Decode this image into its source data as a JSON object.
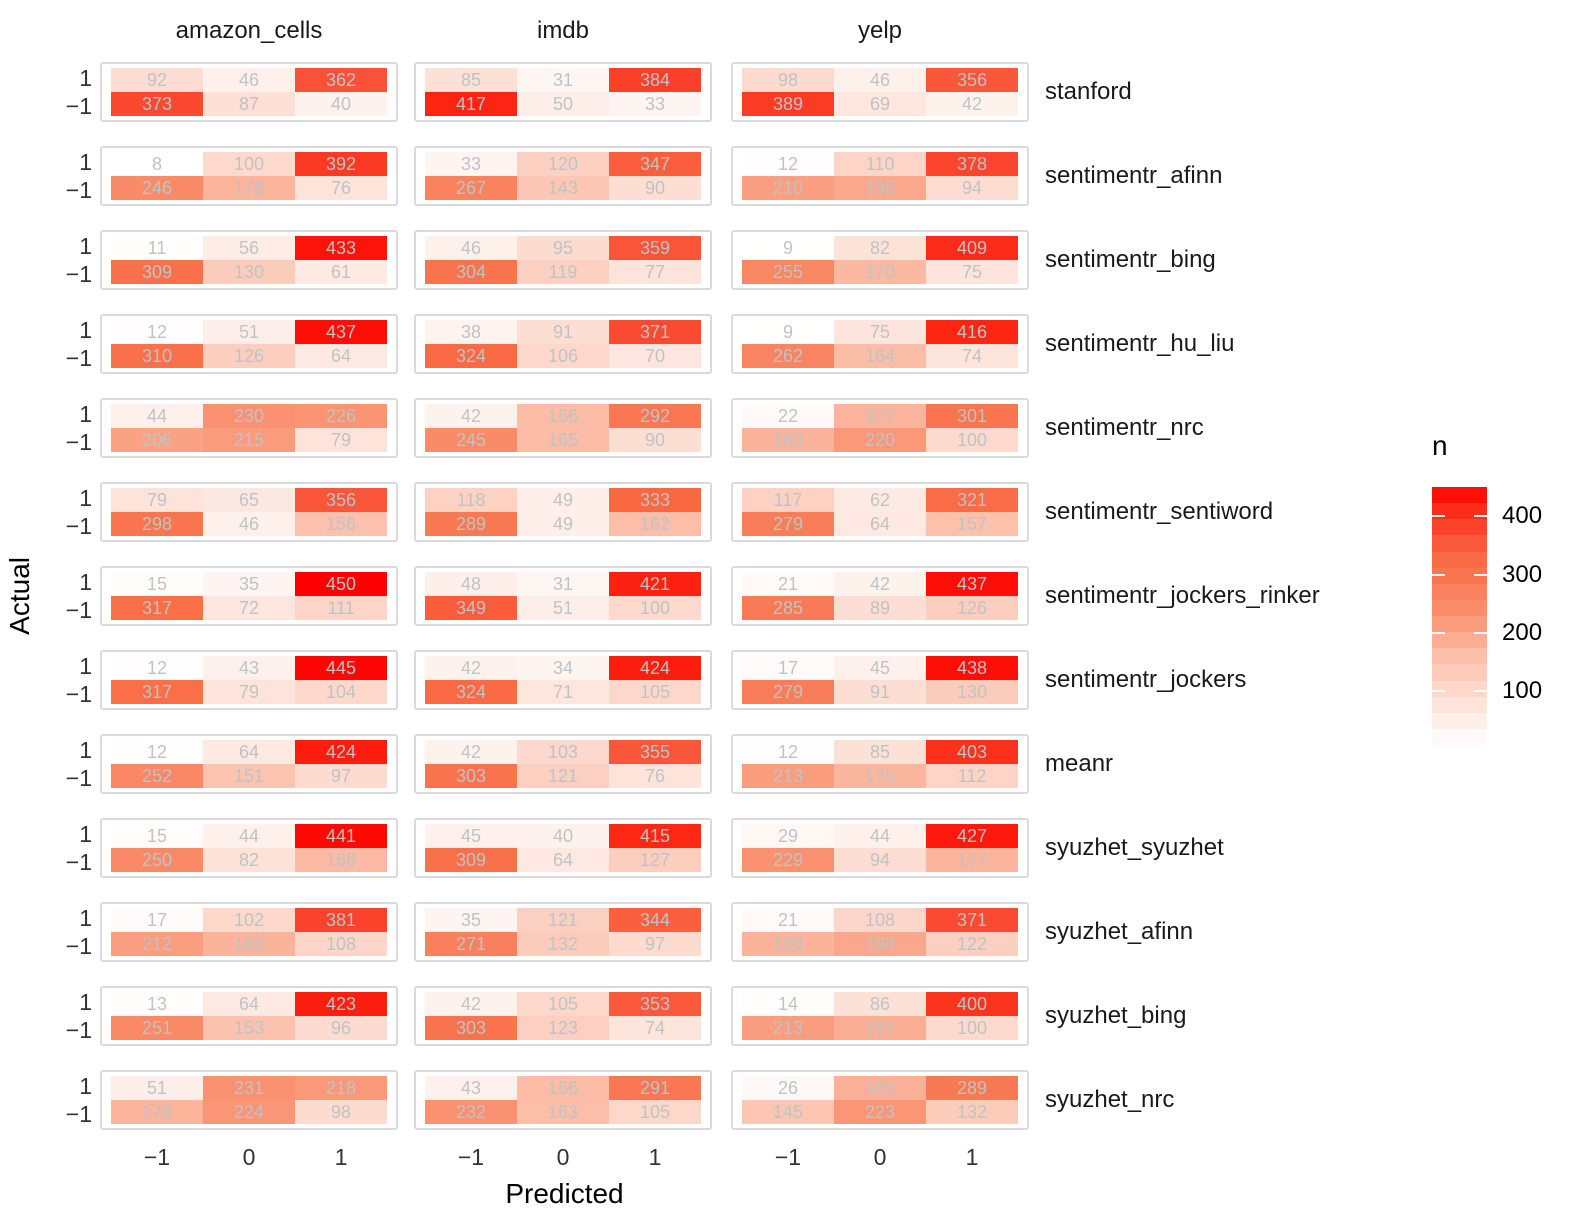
{
  "figure": {
    "x_axis_title": "Predicted",
    "y_axis_title": "Actual",
    "legend_title": "n"
  },
  "chart_data": {
    "type": "heatmap",
    "description": "Faceted 2x3 confusion-matrix heatmaps of sentiment classification counts; columns are datasets, rows are sentiment methods; tile fill encodes count n from white (low) to red (high).",
    "facet_columns": [
      "amazon_cells",
      "imdb",
      "yelp"
    ],
    "facet_rows": [
      "stanford",
      "sentimentr_afinn",
      "sentimentr_bing",
      "sentimentr_hu_liu",
      "sentimentr_nrc",
      "sentimentr_sentiword",
      "sentimentr_jockers_rinker",
      "sentimentr_jockers",
      "meanr",
      "syuzhet_syuzhet",
      "syuzhet_afinn",
      "syuzhet_bing",
      "syuzhet_nrc"
    ],
    "xlabel": "Predicted",
    "ylabel": "Actual",
    "x_levels": [
      "−1",
      "0",
      "1"
    ],
    "y_levels": [
      "1",
      "−1"
    ],
    "legend": {
      "title": "n",
      "ticks": [
        400,
        300,
        200,
        100
      ],
      "range": [
        8,
        450
      ]
    },
    "colors": {
      "low": "#FFFFFF",
      "high": "#FF0000",
      "cell_text": "#BFC3C5",
      "panel_border": "#DADADA"
    },
    "values": [
      {
        "method": "stanford",
        "counts": {
          "amazon_cells": [
            [
              92,
              46,
              362
            ],
            [
              373,
              87,
              40
            ]
          ],
          "imdb": [
            [
              85,
              31,
              384
            ],
            [
              417,
              50,
              33
            ]
          ],
          "yelp": [
            [
              98,
              46,
              356
            ],
            [
              389,
              69,
              42
            ]
          ]
        }
      },
      {
        "method": "sentimentr_afinn",
        "counts": {
          "amazon_cells": [
            [
              8,
              100,
              392
            ],
            [
              246,
              178,
              76
            ]
          ],
          "imdb": [
            [
              33,
              120,
              347
            ],
            [
              267,
              143,
              90
            ]
          ],
          "yelp": [
            [
              12,
              110,
              378
            ],
            [
              210,
              196,
              94
            ]
          ]
        }
      },
      {
        "method": "sentimentr_bing",
        "counts": {
          "amazon_cells": [
            [
              11,
              56,
              433
            ],
            [
              309,
              130,
              61
            ]
          ],
          "imdb": [
            [
              46,
              95,
              359
            ],
            [
              304,
              119,
              77
            ]
          ],
          "yelp": [
            [
              9,
              82,
              409
            ],
            [
              255,
              170,
              75
            ]
          ]
        }
      },
      {
        "method": "sentimentr_hu_liu",
        "counts": {
          "amazon_cells": [
            [
              12,
              51,
              437
            ],
            [
              310,
              126,
              64
            ]
          ],
          "imdb": [
            [
              38,
              91,
              371
            ],
            [
              324,
              106,
              70
            ]
          ],
          "yelp": [
            [
              9,
              75,
              416
            ],
            [
              262,
              164,
              74
            ]
          ]
        }
      },
      {
        "method": "sentimentr_nrc",
        "counts": {
          "amazon_cells": [
            [
              44,
              230,
              226
            ],
            [
              206,
              215,
              79
            ]
          ],
          "imdb": [
            [
              42,
              166,
              292
            ],
            [
              245,
              165,
              90
            ]
          ],
          "yelp": [
            [
              22,
              177,
              301
            ],
            [
              180,
              220,
              100
            ]
          ]
        }
      },
      {
        "method": "sentimentr_sentiword",
        "counts": {
          "amazon_cells": [
            [
              79,
              65,
              356
            ],
            [
              298,
              46,
              156
            ]
          ],
          "imdb": [
            [
              118,
              49,
              333
            ],
            [
              289,
              49,
              162
            ]
          ],
          "yelp": [
            [
              117,
              62,
              321
            ],
            [
              279,
              64,
              157
            ]
          ]
        }
      },
      {
        "method": "sentimentr_jockers_rinker",
        "counts": {
          "amazon_cells": [
            [
              15,
              35,
              450
            ],
            [
              317,
              72,
              111
            ]
          ],
          "imdb": [
            [
              48,
              31,
              421
            ],
            [
              349,
              51,
              100
            ]
          ],
          "yelp": [
            [
              21,
              42,
              437
            ],
            [
              285,
              89,
              126
            ]
          ]
        }
      },
      {
        "method": "sentimentr_jockers",
        "counts": {
          "amazon_cells": [
            [
              12,
              43,
              445
            ],
            [
              317,
              79,
              104
            ]
          ],
          "imdb": [
            [
              42,
              34,
              424
            ],
            [
              324,
              71,
              105
            ]
          ],
          "yelp": [
            [
              17,
              45,
              438
            ],
            [
              279,
              91,
              130
            ]
          ]
        }
      },
      {
        "method": "meanr",
        "counts": {
          "amazon_cells": [
            [
              12,
              64,
              424
            ],
            [
              252,
              151,
              97
            ]
          ],
          "imdb": [
            [
              42,
              103,
              355
            ],
            [
              303,
              121,
              76
            ]
          ],
          "yelp": [
            [
              12,
              85,
              403
            ],
            [
              213,
              175,
              112
            ]
          ]
        }
      },
      {
        "method": "syuzhet_syuzhet",
        "counts": {
          "amazon_cells": [
            [
              15,
              44,
              441
            ],
            [
              250,
              82,
              168
            ]
          ],
          "imdb": [
            [
              45,
              40,
              415
            ],
            [
              309,
              64,
              127
            ]
          ],
          "yelp": [
            [
              29,
              44,
              427
            ],
            [
              229,
              94,
              177
            ]
          ]
        }
      },
      {
        "method": "syuzhet_afinn",
        "counts": {
          "amazon_cells": [
            [
              17,
              102,
              381
            ],
            [
              212,
              180,
              108
            ]
          ],
          "imdb": [
            [
              35,
              121,
              344
            ],
            [
              271,
              132,
              97
            ]
          ],
          "yelp": [
            [
              21,
              108,
              371
            ],
            [
              180,
              198,
              122
            ]
          ]
        }
      },
      {
        "method": "syuzhet_bing",
        "counts": {
          "amazon_cells": [
            [
              13,
              64,
              423
            ],
            [
              251,
              153,
              96
            ]
          ],
          "imdb": [
            [
              42,
              105,
              353
            ],
            [
              303,
              123,
              74
            ]
          ],
          "yelp": [
            [
              14,
              86,
              400
            ],
            [
              213,
              187,
              100
            ]
          ]
        }
      },
      {
        "method": "syuzhet_nrc",
        "counts": {
          "amazon_cells": [
            [
              51,
              231,
              218
            ],
            [
              178,
              224,
              98
            ]
          ],
          "imdb": [
            [
              43,
              166,
              291
            ],
            [
              232,
              163,
              105
            ]
          ],
          "yelp": [
            [
              26,
              185,
              289
            ],
            [
              145,
              223,
              132
            ]
          ]
        }
      }
    ]
  }
}
